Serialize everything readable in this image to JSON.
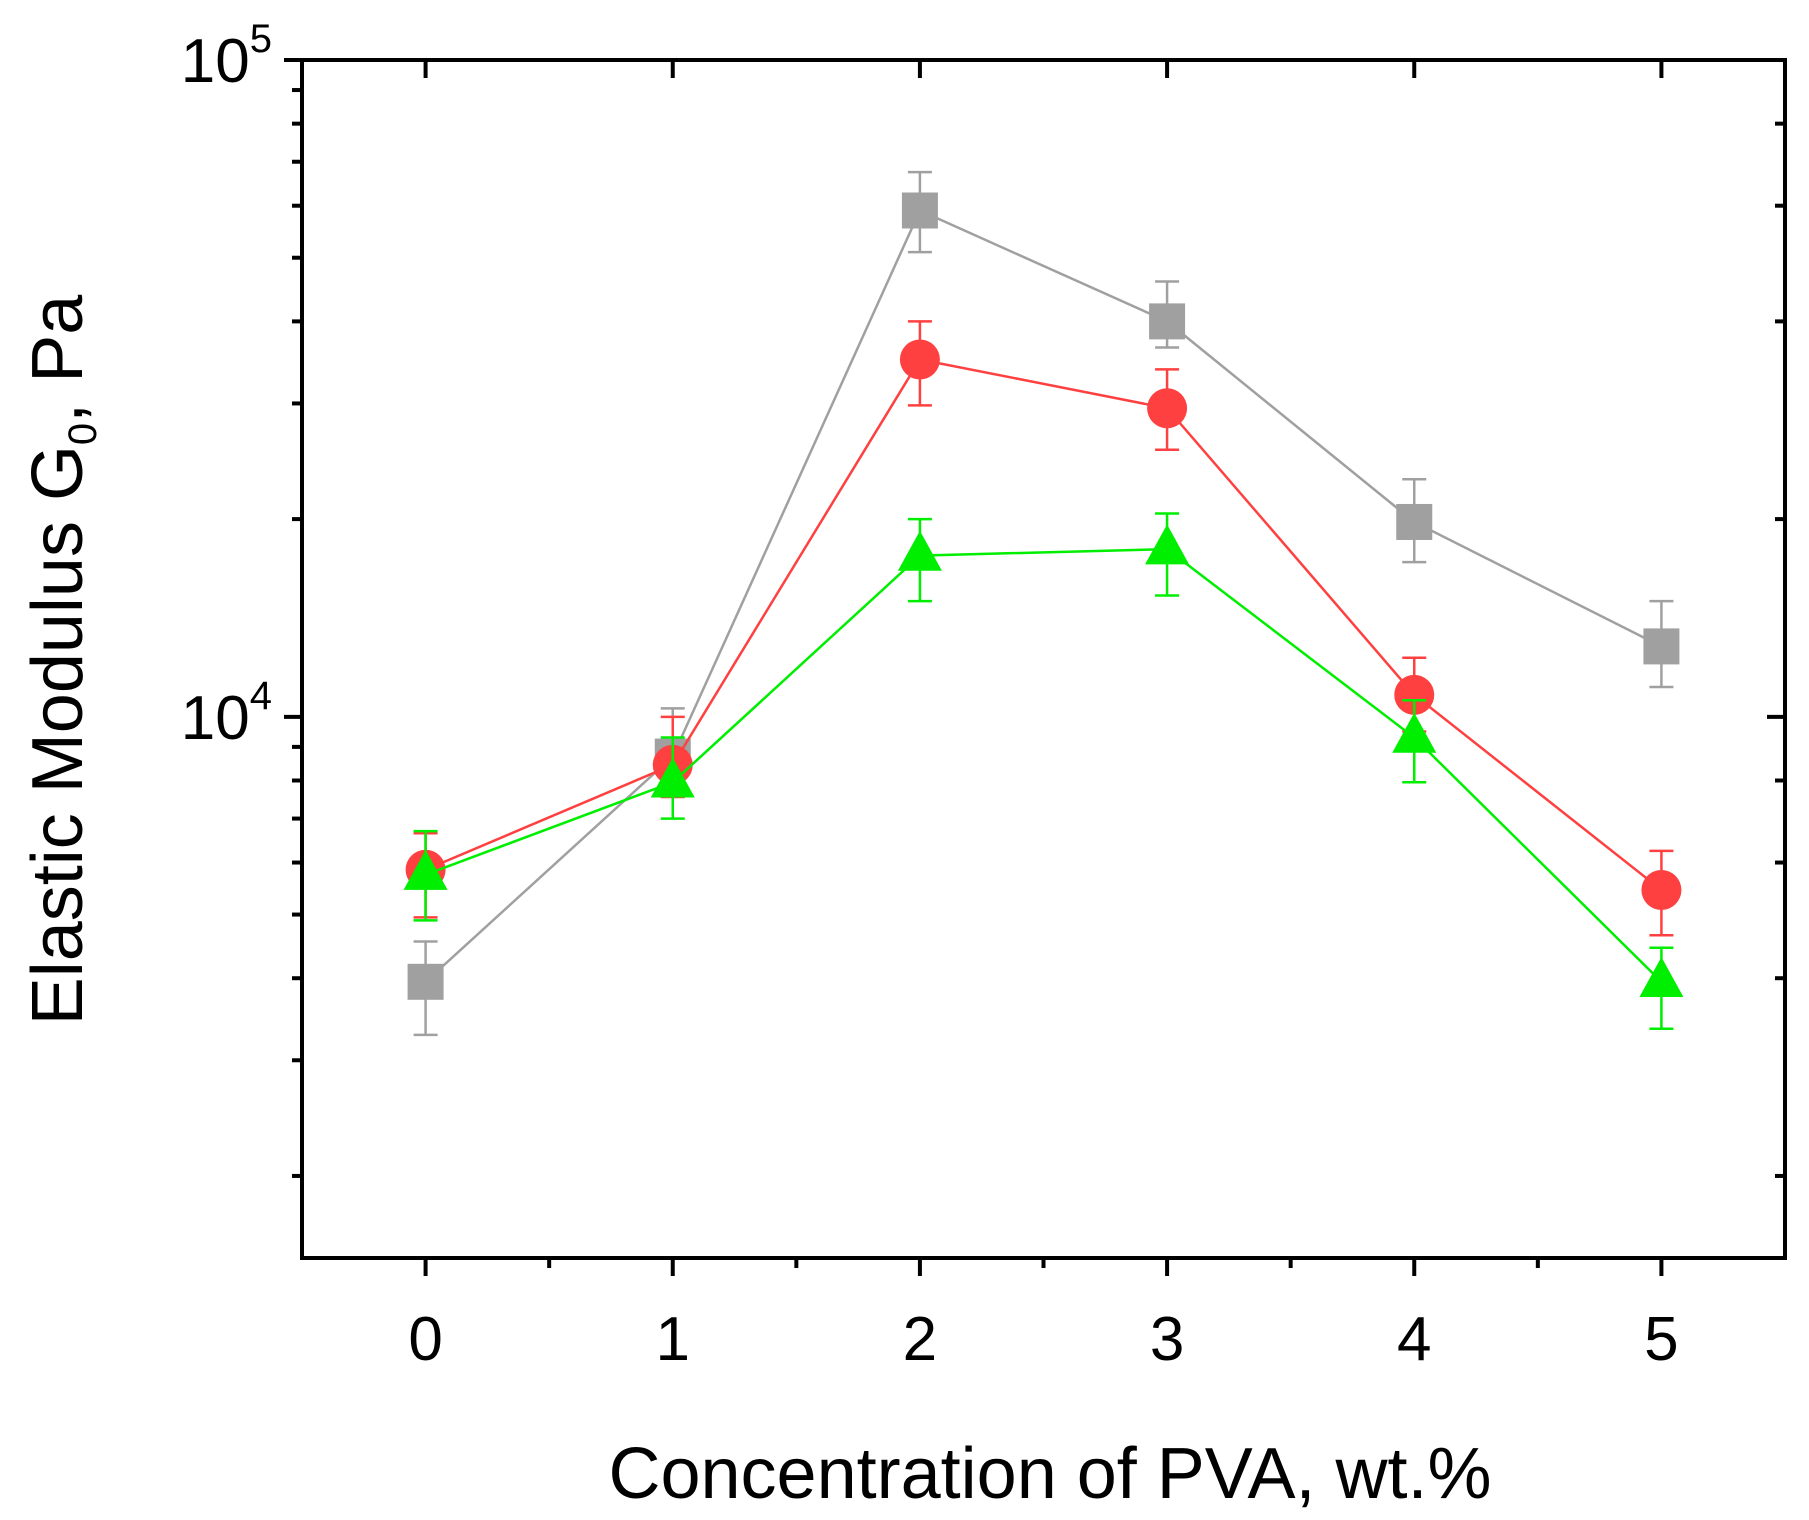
{
  "chart_data": {
    "type": "scatter",
    "xlabel": "Concentration of PVA, wt.%",
    "ylabel_main": "Elastic Modulus G",
    "ylabel_sub": "0",
    "ylabel_tail": ", Pa",
    "x_ticks": [
      "0",
      "1",
      "2",
      "3",
      "4",
      "5"
    ],
    "y_tick_labels": [
      {
        "value": 10000,
        "base": "10",
        "exp": "4"
      },
      {
        "value": 100000,
        "base": "10",
        "exp": "5"
      }
    ],
    "xlim": [
      -0.5,
      5.5
    ],
    "ylim": [
      1500,
      100000
    ],
    "yscale": "log",
    "grid": false,
    "x": [
      0,
      1,
      2,
      3,
      4,
      5
    ],
    "series": [
      {
        "marker": "square",
        "color": "#a0a0a0",
        "values": [
          3950,
          8700,
          59000,
          40000,
          19800,
          12800
        ],
        "err_low": [
          3280,
          7800,
          51000,
          36500,
          17200,
          11100
        ],
        "err_high": [
          4550,
          10300,
          67500,
          46000,
          23000,
          15000
        ]
      },
      {
        "marker": "circle",
        "color": "#ff4040",
        "values": [
          5850,
          8450,
          35000,
          29500,
          10800,
          5450
        ],
        "err_low": [
          4950,
          7550,
          29800,
          25500,
          9500,
          4650
        ],
        "err_high": [
          6650,
          10000,
          40000,
          33800,
          12300,
          6250
        ]
      },
      {
        "marker": "triangle",
        "color": "#00ee00",
        "values": [
          5750,
          7950,
          17600,
          18000,
          9300,
          3950
        ],
        "err_low": [
          4900,
          7000,
          15000,
          15300,
          7950,
          3350
        ],
        "err_high": [
          6700,
          9300,
          20000,
          20400,
          10600,
          4450
        ]
      }
    ]
  }
}
